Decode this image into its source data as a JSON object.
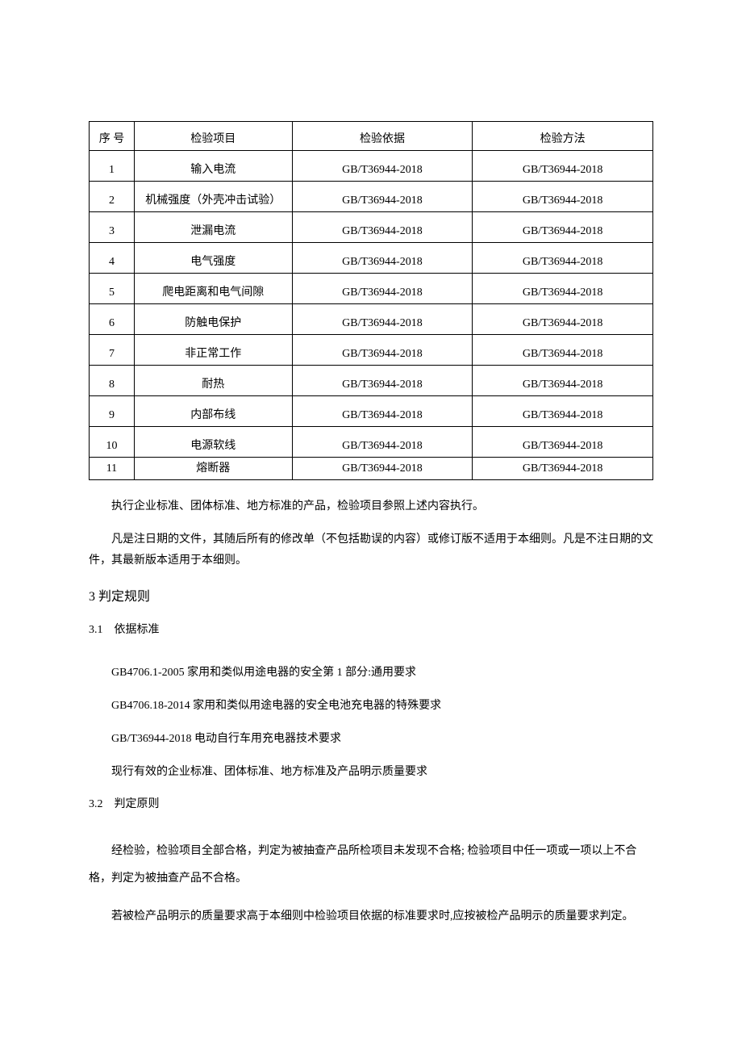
{
  "table": {
    "headers": {
      "seq": "序 号",
      "item": "检验项目",
      "basis": "检验依据",
      "method": "检验方法"
    },
    "rows": [
      {
        "seq": "1",
        "item": "输入电流",
        "basis": "GB/T36944-2018",
        "method": "GB/T36944-2018"
      },
      {
        "seq": "2",
        "item": "机械强度（外壳冲击试验）",
        "basis": "GB/T36944-2018",
        "method": "GB/T36944-2018"
      },
      {
        "seq": "3",
        "item": "泄漏电流",
        "basis": "GB/T36944-2018",
        "method": "GB/T36944-2018"
      },
      {
        "seq": "4",
        "item": "电气强度",
        "basis": "GB/T36944-2018",
        "method": "GB/T36944-2018"
      },
      {
        "seq": "5",
        "item": "爬电距离和电气间隙",
        "basis": "GB/T36944-2018",
        "method": "GB/T36944-2018"
      },
      {
        "seq": "6",
        "item": "防触电保护",
        "basis": "GB/T36944-2018",
        "method": "GB/T36944-2018"
      },
      {
        "seq": "7",
        "item": "非正常工作",
        "basis": "GB/T36944-2018",
        "method": "GB/T36944-2018"
      },
      {
        "seq": "8",
        "item": "耐热",
        "basis": "GB/T36944-2018",
        "method": "GB/T36944-2018"
      },
      {
        "seq": "9",
        "item": "内部布线",
        "basis": "GB/T36944-2018",
        "method": "GB/T36944-2018"
      },
      {
        "seq": "10",
        "item": "电源软线",
        "basis": "GB/T36944-2018",
        "method": "GB/T36944-2018"
      },
      {
        "seq": "11",
        "item": "熔断器",
        "basis": "GB/T36944-2018",
        "method": "GB/T36944-2018"
      }
    ]
  },
  "paragraphs": {
    "p1": "执行企业标准、团体标准、地方标准的产品，检验项目参照上述内容执行。",
    "p2": "凡是注日期的文件，其随后所有的修改单（不包括勘误的内容）或修订版不适用于本细则。凡是不注日期的文件，其最新版本适用于本细则。"
  },
  "section3": {
    "heading": "3 判定规则",
    "sub1": {
      "heading": "3.1　依据标准",
      "items": [
        "GB4706.1-2005 家用和类似用途电器的安全第 1 部分:通用要求",
        "GB4706.18-2014 家用和类似用途电器的安全电池充电器的特殊要求",
        "GB/T36944-2018 电动自行车用充电器技术要求",
        "现行有效的企业标准、团体标准、地方标准及产品明示质量要求"
      ]
    },
    "sub2": {
      "heading": "3.2　判定原则",
      "p1": "经检验，检验项目全部合格，判定为被抽查产品所检项目未发现不合格; 检验项目中任一项或一项以上不合格，判定为被抽查产品不合格。",
      "p2": "若被检产品明示的质量要求高于本细则中检验项目依据的标准要求时,应按被检产品明示的质量要求判定。"
    }
  }
}
